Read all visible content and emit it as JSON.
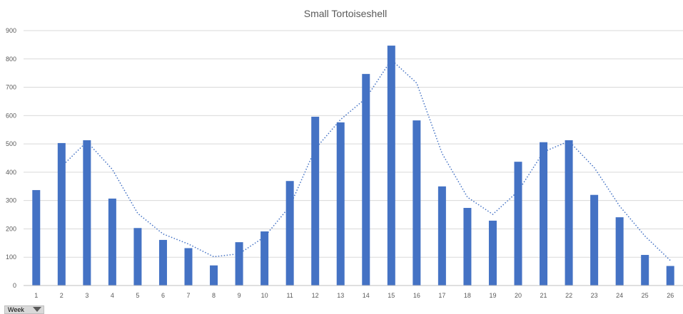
{
  "chart_data": {
    "type": "bar",
    "title": "Small Tortoiseshell",
    "categories": [
      "1",
      "2",
      "3",
      "4",
      "5",
      "6",
      "7",
      "8",
      "9",
      "10",
      "11",
      "12",
      "13",
      "14",
      "15",
      "16",
      "17",
      "18",
      "19",
      "20",
      "21",
      "22",
      "23",
      "24",
      "25",
      "26"
    ],
    "series": [
      {
        "name": "Small Tortoiseshell",
        "values": [
          337,
          503,
          513,
          307,
          203,
          161,
          132,
          71,
          153,
          191,
          369,
          596,
          576,
          747,
          847,
          583,
          350,
          274,
          229,
          437,
          506,
          513,
          320,
          241,
          108,
          69
        ]
      }
    ],
    "trendline": {
      "type": "moving-average",
      "period": 2,
      "style": "dotted"
    },
    "ylim": [
      0,
      900
    ],
    "yticks": [
      0,
      100,
      200,
      300,
      400,
      500,
      600,
      700,
      800,
      900
    ],
    "grid": true,
    "colors": {
      "bar": "#4472c4",
      "grid": "#d9d9d9",
      "text": "#595959"
    }
  },
  "field_button": {
    "label": "Week",
    "icon": "filter-dropdown-icon"
  }
}
